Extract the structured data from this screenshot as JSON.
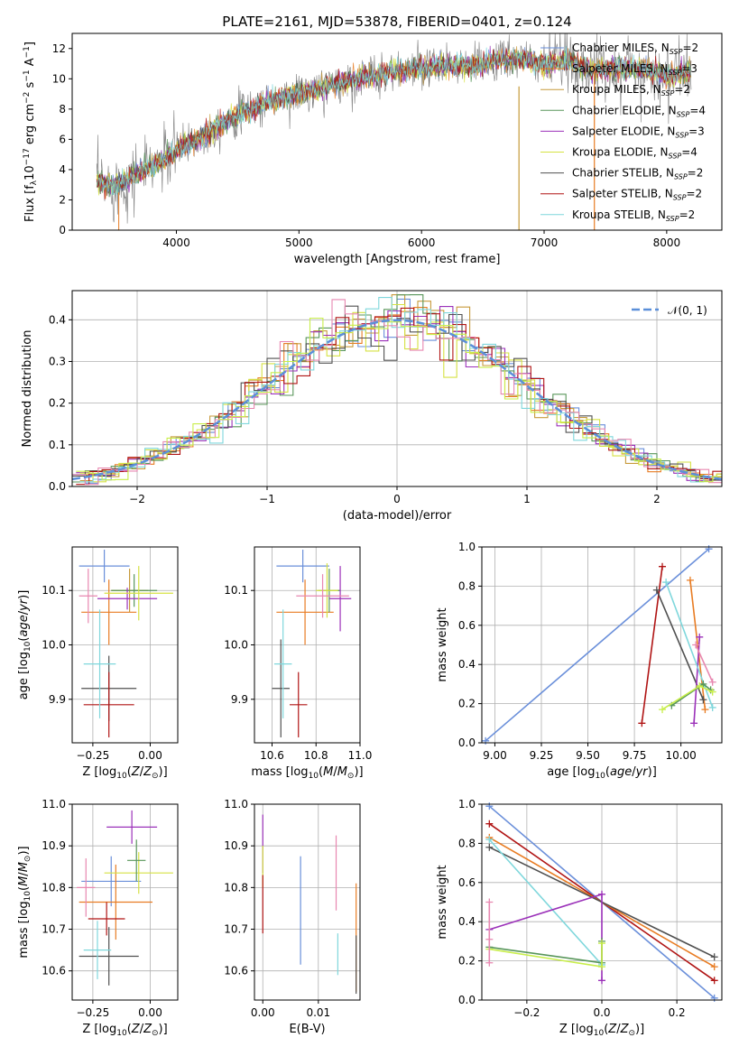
{
  "title": "PLATE=2161, MJD=53878, FIBERID=0401, z=0.124",
  "models": [
    {
      "name": "Chabrier MILES, N",
      "nssp": "=2",
      "color": "#6a8fda"
    },
    {
      "name": "Salpeter MILES, N",
      "nssp": "=3",
      "color": "#e87c23"
    },
    {
      "name": "Kroupa MILES, N",
      "nssp": "=2",
      "color": "#c79a3b"
    },
    {
      "name": "Chabrier ELODIE, N",
      "nssp": "=4",
      "color": "#58965a"
    },
    {
      "name": "Salpeter ELODIE, N",
      "nssp": "=3",
      "color": "#9b31b9"
    },
    {
      "name": "Kroupa ELODIE, N",
      "nssp": "=4",
      "color": "#d6e243"
    },
    {
      "name": "Chabrier STELIB, N",
      "nssp": "=2",
      "color": "#505050"
    },
    {
      "name": "Salpeter STELIB, N",
      "nssp": "=2",
      "color": "#b01414"
    },
    {
      "name": "Kroupa STELIB, N",
      "nssp": "=2",
      "color": "#7fd7dc"
    }
  ],
  "extra_colors": {
    "pink": "#e887b0",
    "lime": "#c8ee4a",
    "normal": "#5b8fd9"
  },
  "chart_data": [
    {
      "id": "spectrum",
      "type": "line",
      "title": "PLATE=2161, MJD=53878, FIBERID=0401, z=0.124",
      "xlabel": "wavelength [Angstrom, rest frame]",
      "ylabel_parts": [
        "Flux [f",
        "λ",
        "10",
        "−17",
        " erg cm",
        "−2",
        " s",
        "−1",
        " A",
        "−1",
        "]"
      ],
      "xlim": [
        3150,
        8450
      ],
      "ylim": [
        0,
        13
      ],
      "xticks": [
        4000,
        5000,
        6000,
        7000,
        8000
      ],
      "yticks": [
        0,
        2,
        4,
        6,
        8,
        10,
        12
      ],
      "legend": "upper right",
      "approx_envelope": {
        "x": [
          3350,
          3500,
          3700,
          3900,
          4000,
          4200,
          4400,
          4600,
          4800,
          5000,
          5200,
          5400,
          5600,
          5800,
          6000,
          6200,
          6400,
          6600,
          6800,
          7000,
          7200,
          7400,
          7600,
          7800,
          8000,
          8200
        ],
        "y": [
          3.2,
          2.9,
          3.8,
          4.6,
          5.3,
          6.1,
          7.2,
          8.0,
          8.6,
          9.0,
          9.4,
          9.9,
          10.2,
          10.5,
          10.7,
          10.9,
          10.8,
          11.2,
          11.3,
          10.9,
          11.2,
          10.6,
          10.7,
          10.6,
          10.2,
          10.5
        ]
      }
    },
    {
      "id": "residual-hist",
      "type": "line",
      "xlabel": "(data-model)/error",
      "ylabel": "Normed distribution",
      "xlim": [
        -2.5,
        2.5
      ],
      "ylim": [
        0,
        0.47
      ],
      "xticks": [
        -2,
        -1,
        0,
        1,
        2
      ],
      "xtick_labels": [
        "−2",
        "−1",
        "0",
        "1",
        "2"
      ],
      "yticks": [
        0.0,
        0.1,
        0.2,
        0.3,
        0.4
      ],
      "ytick_labels": [
        "0.0",
        "0.1",
        "0.2",
        "0.3",
        "0.4"
      ],
      "series": [
        {
          "name": "𝒩(0, 1)",
          "values": "standard normal pdf"
        }
      ],
      "bin_width": 0.1
    },
    {
      "id": "age-vs-Z",
      "type": "scatter",
      "xlabel": "Z [log10(Z/Z⊙)]",
      "ylabel": "age [log10(age/yr)]",
      "xlim": [
        -0.34,
        0.12
      ],
      "ylim": [
        9.82,
        10.18
      ],
      "xticks": [
        -0.25,
        0.0
      ],
      "xtick_labels": [
        "−0.25",
        "0.00"
      ],
      "yticks": [
        9.9,
        10.0,
        10.1
      ],
      "ytick_labels": [
        "9.9",
        "10.0",
        "10.1"
      ],
      "points": [
        {
          "color": "#6a8fda",
          "x": -0.2,
          "xerr": 0.11,
          "y": 10.145,
          "yerr": 0.03
        },
        {
          "color": "#e87c23",
          "x": -0.18,
          "xerr": 0.12,
          "y": 10.06,
          "yerr": 0.06
        },
        {
          "color": "#c79a3b",
          "x": -0.09,
          "xerr": 0.08,
          "y": 10.1,
          "yerr": 0.04
        },
        {
          "color": "#58965a",
          "x": -0.07,
          "xerr": 0.1,
          "y": 10.1,
          "yerr": 0.03
        },
        {
          "color": "#9b31b9",
          "x": -0.1,
          "xerr": 0.13,
          "y": 10.085,
          "yerr": 0.02
        },
        {
          "color": "#d6e243",
          "x": -0.05,
          "xerr": 0.15,
          "y": 10.095,
          "yerr": 0.05
        },
        {
          "color": "#505050",
          "x": -0.18,
          "xerr": 0.12,
          "y": 9.92,
          "yerr": 0.06
        },
        {
          "color": "#b01414",
          "x": -0.18,
          "xerr": 0.11,
          "y": 9.89,
          "yerr": 0.06
        },
        {
          "color": "#7fd7dc",
          "x": -0.22,
          "xerr": 0.07,
          "y": 9.965,
          "yerr": 0.1
        },
        {
          "color": "#e887b0",
          "x": -0.27,
          "xerr": 0.04,
          "y": 10.09,
          "yerr": 0.05
        }
      ]
    },
    {
      "id": "age-vs-mass",
      "type": "scatter",
      "xlabel": "mass [log10(M/M⊙)]",
      "ylabel": "",
      "xlim": [
        10.52,
        11.0
      ],
      "ylim": [
        9.82,
        10.18
      ],
      "xticks": [
        10.6,
        10.8,
        11.0
      ],
      "xtick_labels": [
        "10.6",
        "10.8",
        "11.0"
      ],
      "yticks": [
        9.9,
        10.0,
        10.1
      ],
      "ytick_labels": [
        "9.9",
        "10.0",
        "10.1"
      ],
      "points": [
        {
          "color": "#6a8fda",
          "x": 10.74,
          "xerr": 0.12,
          "y": 10.145,
          "yerr": 0.03
        },
        {
          "color": "#e87c23",
          "x": 10.75,
          "xerr": 0.13,
          "y": 10.06,
          "yerr": 0.06
        },
        {
          "color": "#58965a",
          "x": 10.86,
          "xerr": 0.05,
          "y": 10.1,
          "yerr": 0.04
        },
        {
          "color": "#9b31b9",
          "x": 10.91,
          "xerr": 0.05,
          "y": 10.085,
          "yerr": 0.06
        },
        {
          "color": "#d6e243",
          "x": 10.85,
          "xerr": 0.05,
          "y": 10.1,
          "yerr": 0.05
        },
        {
          "color": "#505050",
          "x": 10.64,
          "xerr": 0.04,
          "y": 9.92,
          "yerr": 0.09
        },
        {
          "color": "#b01414",
          "x": 10.72,
          "xerr": 0.04,
          "y": 9.89,
          "yerr": 0.06
        },
        {
          "color": "#7fd7dc",
          "x": 10.65,
          "xerr": 0.04,
          "y": 9.965,
          "yerr": 0.1
        },
        {
          "color": "#e887b0",
          "x": 10.83,
          "xerr": 0.12,
          "y": 10.09,
          "yerr": 0.04
        }
      ]
    },
    {
      "id": "mass-weight-vs-age",
      "type": "line",
      "xlabel": "age [log10(age/yr)]",
      "ylabel": "mass weight",
      "xlim": [
        8.93,
        10.22
      ],
      "ylim": [
        0,
        1.0
      ],
      "xticks": [
        9.0,
        9.25,
        9.5,
        9.75,
        10.0
      ],
      "xtick_labels": [
        "9.00",
        "9.25",
        "9.50",
        "9.75",
        "10.00"
      ],
      "yticks": [
        0,
        0.2,
        0.4,
        0.6,
        0.8,
        1.0
      ],
      "ytick_labels": [
        "0.0",
        "0.2",
        "0.4",
        "0.6",
        "0.8",
        "1.0"
      ],
      "series": [
        {
          "color": "#6a8fda",
          "x": [
            8.95,
            10.15
          ],
          "y": [
            0.01,
            0.99
          ]
        },
        {
          "color": "#e87c23",
          "x": [
            10.05,
            10.13
          ],
          "y": [
            0.83,
            0.17
          ]
        },
        {
          "color": "#b01414",
          "x": [
            9.79,
            9.9
          ],
          "y": [
            0.1,
            0.9
          ]
        },
        {
          "color": "#505050",
          "x": [
            9.87,
            10.12
          ],
          "y": [
            0.78,
            0.22
          ]
        },
        {
          "color": "#9b31b9",
          "x": [
            10.07,
            10.1
          ],
          "y": [
            0.1,
            0.54
          ]
        },
        {
          "color": "#7fd7dc",
          "x": [
            9.92,
            10.17
          ],
          "y": [
            0.82,
            0.18
          ]
        },
        {
          "color": "#e887b0",
          "x": [
            10.08,
            10.17
          ],
          "y": [
            0.5,
            0.31
          ]
        },
        {
          "color": "#58965a",
          "x": [
            9.95,
            10.12,
            10.16
          ],
          "y": [
            0.19,
            0.3,
            0.27
          ]
        },
        {
          "color": "#c8ee4a",
          "x": [
            9.9,
            10.1,
            10.17
          ],
          "y": [
            0.17,
            0.29,
            0.26
          ]
        }
      ]
    },
    {
      "id": "mass-vs-Z",
      "type": "scatter",
      "xlabel": "Z [log10(Z/Z⊙)]",
      "ylabel": "mass [log10(M/M⊙)]",
      "xlim": [
        -0.34,
        0.12
      ],
      "ylim": [
        10.53,
        11.0
      ],
      "xticks": [
        -0.25,
        0.0
      ],
      "xtick_labels": [
        "−0.25",
        "0.00"
      ],
      "yticks": [
        10.6,
        10.7,
        10.8,
        10.9,
        11.0
      ],
      "ytick_labels": [
        "10.6",
        "10.7",
        "10.8",
        "10.9",
        "11.0"
      ],
      "points": [
        {
          "color": "#6a8fda",
          "x": -0.17,
          "xerr": 0.13,
          "y": 10.815,
          "yerr": 0.06
        },
        {
          "color": "#e87c23",
          "x": -0.15,
          "xerr": 0.16,
          "y": 10.765,
          "yerr": 0.09
        },
        {
          "color": "#9b31b9",
          "x": -0.08,
          "xerr": 0.11,
          "y": 10.945,
          "yerr": 0.04
        },
        {
          "color": "#d6e243",
          "x": -0.05,
          "xerr": 0.15,
          "y": 10.835,
          "yerr": 0.05
        },
        {
          "color": "#58965a",
          "x": -0.06,
          "xerr": 0.04,
          "y": 10.865,
          "yerr": 0.05
        },
        {
          "color": "#505050",
          "x": -0.18,
          "xerr": 0.13,
          "y": 10.635,
          "yerr": 0.07
        },
        {
          "color": "#b01414",
          "x": -0.19,
          "xerr": 0.08,
          "y": 10.725,
          "yerr": 0.04
        },
        {
          "color": "#7fd7dc",
          "x": -0.23,
          "xerr": 0.06,
          "y": 10.65,
          "yerr": 0.07
        },
        {
          "color": "#e887b0",
          "x": -0.28,
          "xerr": 0.04,
          "y": 10.8,
          "yerr": 0.07
        }
      ]
    },
    {
      "id": "mass-vs-ebv",
      "type": "scatter",
      "xlabel": "E(B-V)",
      "ylabel": "",
      "xlim": [
        -0.0015,
        0.0175
      ],
      "ylim": [
        10.53,
        11.0
      ],
      "xticks": [
        0.0,
        0.01
      ],
      "xtick_labels": [
        "0.00",
        "0.01"
      ],
      "yticks": [
        10.6,
        10.7,
        10.8,
        10.9,
        11.0
      ],
      "ytick_labels": [
        "10.6",
        "10.7",
        "10.8",
        "10.9",
        "11.0"
      ],
      "points": [
        {
          "color": "#9b31b9",
          "x": 0.0,
          "xerr": 0,
          "y": 10.905,
          "yerr": 0.07
        },
        {
          "color": "#d6e243",
          "x": 0.0,
          "xerr": 0,
          "y": 10.85,
          "yerr": 0.05
        },
        {
          "color": "#b01414",
          "x": 0.0,
          "xerr": 0,
          "y": 10.76,
          "yerr": 0.07
        },
        {
          "color": "#6a8fda",
          "x": 0.0068,
          "xerr": 0,
          "y": 10.745,
          "yerr": 0.13
        },
        {
          "color": "#e887b0",
          "x": 0.0132,
          "xerr": 0,
          "y": 10.835,
          "yerr": 0.09
        },
        {
          "color": "#7fd7dc",
          "x": 0.0135,
          "xerr": 0,
          "y": 10.64,
          "yerr": 0.05
        },
        {
          "color": "#e87c23",
          "x": 0.0168,
          "xerr": 0,
          "y": 10.68,
          "yerr": 0.13
        },
        {
          "color": "#505050",
          "x": 0.0168,
          "xerr": 0,
          "y": 10.615,
          "yerr": 0.07
        }
      ]
    },
    {
      "id": "mass-weight-vs-Z",
      "type": "line",
      "xlabel": "Z [log10(Z/Z⊙)]",
      "ylabel": "mass weight",
      "xlim": [
        -0.32,
        0.32
      ],
      "ylim": [
        0,
        1.0
      ],
      "xticks": [
        -0.2,
        0.0,
        0.2
      ],
      "xtick_labels": [
        "−0.2",
        "0.0",
        "0.2"
      ],
      "yticks": [
        0,
        0.2,
        0.4,
        0.6,
        0.8,
        1.0
      ],
      "ytick_labels": [
        "0.0",
        "0.2",
        "0.4",
        "0.6",
        "0.8",
        "1.0"
      ],
      "series": [
        {
          "color": "#6a8fda",
          "x": [
            -0.3,
            0.3
          ],
          "y": [
            0.99,
            0.01
          ]
        },
        {
          "color": "#b01414",
          "x": [
            -0.3,
            0.3
          ],
          "y": [
            0.9,
            0.1
          ]
        },
        {
          "color": "#e87c23",
          "x": [
            -0.3,
            0.3
          ],
          "y": [
            0.83,
            0.17
          ]
        },
        {
          "color": "#505050",
          "x": [
            -0.3,
            0.3
          ],
          "y": [
            0.78,
            0.22
          ]
        },
        {
          "color": "#7fd7dc",
          "x": [
            -0.3,
            0.0
          ],
          "y": [
            0.82,
            0.18
          ]
        },
        {
          "color": "#9b31b9",
          "x": [
            -0.3,
            0.0,
            0.0
          ],
          "y": [
            0.36,
            0.54,
            0.1
          ]
        },
        {
          "color": "#58965a",
          "x": [
            -0.3,
            0.0,
            0.0
          ],
          "y": [
            0.27,
            0.19,
            0.3
          ]
        },
        {
          "color": "#c8ee4a",
          "x": [
            -0.3,
            0.0,
            0.0
          ],
          "y": [
            0.26,
            0.17,
            0.29
          ]
        },
        {
          "color": "#e887b0",
          "x": [
            -0.3,
            -0.3,
            -0.3
          ],
          "y": [
            0.5,
            0.31,
            0.19
          ]
        }
      ]
    }
  ]
}
